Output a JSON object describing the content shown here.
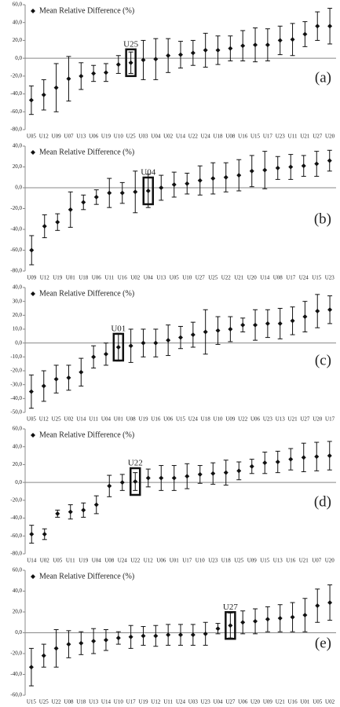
{
  "chart_data": [
    {
      "type": "errorbar",
      "panel_label": "(a)",
      "highlight": "U25",
      "categories": [
        "U05",
        "U12",
        "U09",
        "U07",
        "U13",
        "U06",
        "U19",
        "U10",
        "U25",
        "U03",
        "U04",
        "U02",
        "U14",
        "U22",
        "U24",
        "U18",
        "U08",
        "U16",
        "U15",
        "U17",
        "U23",
        "U11",
        "U21",
        "U27",
        "U20"
      ],
      "series": [
        {
          "name": "Mean Relative Difference (%)",
          "color": "#111111",
          "values": [
            -47,
            -41,
            -33,
            -23,
            -20,
            -17,
            -16,
            -7,
            -5,
            -2,
            -1,
            3,
            4,
            6,
            9,
            9,
            11,
            14,
            15,
            15,
            20,
            21,
            27,
            36,
            36
          ],
          "errors": [
            16,
            17,
            27,
            25,
            15,
            9,
            10,
            10,
            12,
            22,
            23,
            19,
            15,
            14,
            19,
            16,
            14,
            17,
            19,
            18,
            16,
            18,
            14,
            16,
            20
          ]
        }
      ],
      "ylim": [
        -80,
        60
      ],
      "yticks": [
        {
          "value": -80,
          "label": "-80,0"
        },
        {
          "value": -60,
          "label": "-60,0"
        },
        {
          "value": -40,
          "label": "-40,0"
        },
        {
          "value": -20,
          "label": "-20,0"
        },
        {
          "value": 0,
          "label": "0,0"
        },
        {
          "value": 20,
          "label": "20,0"
        },
        {
          "value": 40,
          "label": "40,0"
        },
        {
          "value": 60,
          "label": "60,0"
        }
      ]
    },
    {
      "type": "errorbar",
      "panel_label": "(b)",
      "highlight": "U04",
      "categories": [
        "U09",
        "U12",
        "U19",
        "U01",
        "U18",
        "U06",
        "U11",
        "U16",
        "U02",
        "U04",
        "U13",
        "U05",
        "U10",
        "U27",
        "U25",
        "U22",
        "U21",
        "U20",
        "U14",
        "U08",
        "U17",
        "U24",
        "U15",
        "U23"
      ],
      "series": [
        {
          "name": "Mean Relative Difference (%)",
          "color": "#111111",
          "values": [
            -60,
            -37,
            -33,
            -21,
            -14,
            -9,
            -5,
            -5,
            -4,
            -3,
            0,
            3,
            4,
            7,
            9,
            10,
            12,
            16,
            17,
            19,
            20,
            21,
            23,
            26
          ],
          "errors": [
            14,
            11,
            8,
            17,
            7,
            7,
            14,
            10,
            20,
            16,
            12,
            12,
            10,
            14,
            15,
            14,
            15,
            15,
            18,
            11,
            12,
            10,
            12,
            10
          ]
        }
      ],
      "ylim": [
        -80,
        40
      ],
      "yticks": [
        {
          "value": -80,
          "label": "-80,0"
        },
        {
          "value": -60,
          "label": "-60,0"
        },
        {
          "value": -40,
          "label": "-40,0"
        },
        {
          "value": -20,
          "label": "-20,0"
        },
        {
          "value": 0,
          "label": "0,0"
        },
        {
          "value": 20,
          "label": "20,0"
        },
        {
          "value": 40,
          "label": "40,0"
        }
      ]
    },
    {
      "type": "errorbar",
      "panel_label": "(c)",
      "highlight": "U01",
      "categories": [
        "U05",
        "U12",
        "U25",
        "U02",
        "U14",
        "U11",
        "U04",
        "U01",
        "U08",
        "U19",
        "U16",
        "U06",
        "U15",
        "U24",
        "U18",
        "U10",
        "U09",
        "U22",
        "U06",
        "U23",
        "U13",
        "U21",
        "U27",
        "U20",
        "U17"
      ],
      "series": [
        {
          "name": "Mean Relative Difference (%)",
          "color": "#111111",
          "values": [
            -35,
            -31,
            -26,
            -25,
            -21,
            -10,
            -8,
            -3,
            -2,
            0,
            0,
            2,
            4,
            6,
            8,
            9,
            10,
            13,
            13,
            14,
            14,
            16,
            19,
            23,
            24
          ],
          "errors": [
            12,
            11,
            10,
            9,
            10,
            8,
            8,
            10,
            12,
            10,
            10,
            11,
            8,
            9,
            16,
            10,
            9,
            5,
            11,
            10,
            11,
            10,
            11,
            12,
            10
          ]
        }
      ],
      "ylim": [
        -50,
        40
      ],
      "yticks": [
        {
          "value": -50,
          "label": "-50,0"
        },
        {
          "value": -40,
          "label": "-40,0"
        },
        {
          "value": -30,
          "label": "-30,0"
        },
        {
          "value": -20,
          "label": "-20,0"
        },
        {
          "value": -10,
          "label": "-10,0"
        },
        {
          "value": 0,
          "label": "0,0"
        },
        {
          "value": 10,
          "label": "10,0"
        },
        {
          "value": 20,
          "label": "20,0"
        },
        {
          "value": 30,
          "label": "30,0"
        },
        {
          "value": 40,
          "label": "40,0"
        }
      ]
    },
    {
      "type": "errorbar",
      "panel_label": "(d)",
      "highlight": "U22",
      "categories": [
        "U14",
        "U02",
        "U05",
        "U11",
        "U19",
        "U04",
        "U08",
        "U24",
        "U22",
        "U12",
        "U06",
        "U01",
        "U17",
        "U10",
        "U23",
        "U18",
        "U25",
        "U09",
        "U15",
        "U13",
        "U16",
        "U21",
        "U07",
        "U20"
      ],
      "series": [
        {
          "name": "Mean Relative Difference (%)",
          "color": "#111111",
          "values": [
            -58,
            -58,
            -35,
            -33,
            -31,
            -25,
            -4,
            0,
            1,
            5,
            5,
            5,
            7,
            9,
            10,
            11,
            13,
            18,
            22,
            23,
            26,
            28,
            29,
            30
          ],
          "errors": [
            10,
            6,
            4,
            8,
            8,
            10,
            12,
            9,
            10,
            10,
            14,
            14,
            14,
            10,
            12,
            14,
            10,
            8,
            12,
            12,
            12,
            16,
            16,
            16
          ]
        }
      ],
      "ylim": [
        -80,
        60
      ],
      "yticks": [
        {
          "value": -80,
          "label": "-80,0"
        },
        {
          "value": -60,
          "label": "-60,0"
        },
        {
          "value": -40,
          "label": "-40,0"
        },
        {
          "value": -20,
          "label": "-20,0"
        },
        {
          "value": 0,
          "label": "0,0"
        },
        {
          "value": 20,
          "label": "20,0"
        },
        {
          "value": 40,
          "label": "40,0"
        },
        {
          "value": 60,
          "label": "60,0"
        }
      ]
    },
    {
      "type": "errorbar",
      "panel_label": "(e)",
      "highlight": "U27",
      "categories": [
        "U15",
        "U25",
        "U22",
        "U08",
        "U18",
        "U13",
        "U14",
        "U10",
        "U17",
        "U19",
        "U12",
        "U11",
        "U24",
        "U03",
        "U23",
        "U04",
        "U27",
        "U06",
        "U20",
        "U09",
        "U21",
        "U16",
        "U01",
        "U05",
        "U02"
      ],
      "series": [
        {
          "name": "Mean Relative Difference (%)",
          "color": "#111111",
          "values": [
            -33,
            -22,
            -15,
            -11,
            -10,
            -8,
            -7,
            -5,
            -4,
            -3,
            -3,
            -2,
            -2,
            -2,
            -1,
            4,
            7,
            10,
            11,
            13,
            14,
            15,
            17,
            26,
            29
          ],
          "errors": [
            18,
            11,
            18,
            13,
            11,
            12,
            10,
            6,
            11,
            9,
            10,
            10,
            10,
            10,
            11,
            5,
            12,
            11,
            12,
            12,
            13,
            14,
            16,
            16,
            17
          ]
        }
      ],
      "ylim": [
        -60,
        60
      ],
      "yticks": [
        {
          "value": -60,
          "label": "-60,0"
        },
        {
          "value": -40,
          "label": "-40,0"
        },
        {
          "value": -20,
          "label": "-20,0"
        },
        {
          "value": 0,
          "label": "0,0"
        },
        {
          "value": 20,
          "label": "20,0"
        },
        {
          "value": 40,
          "label": "40,0"
        },
        {
          "value": 60,
          "label": "60,0"
        }
      ]
    }
  ]
}
